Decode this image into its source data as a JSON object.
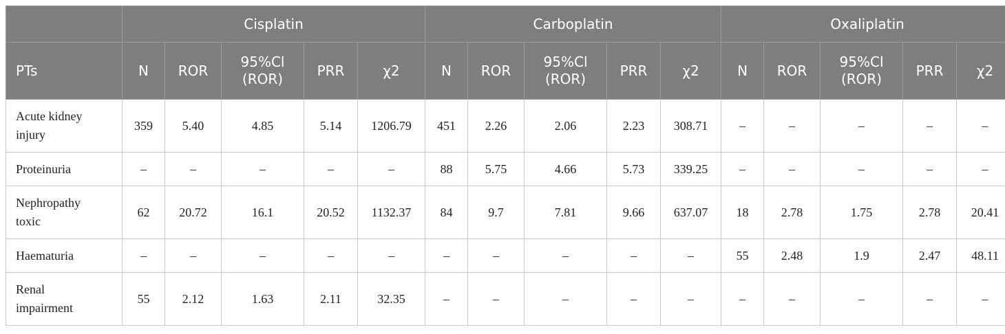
{
  "groups": [
    "Cisplatin",
    "Carboplatin",
    "Oxaliplatin"
  ],
  "columns": {
    "pts": "PTs",
    "n": "N",
    "ror": "ROR",
    "ci_line1": "95%Cl",
    "ci_line2": "(ROR)",
    "prr": "PRR",
    "chi2": "χ2"
  },
  "rows": [
    {
      "pt_line1": "Acute kidney",
      "pt_line2": "injury",
      "cells": [
        "359",
        "5.40",
        "4.85",
        "5.14",
        "1206.79",
        "451",
        "2.26",
        "2.06",
        "2.23",
        "308.71",
        "–",
        "–",
        "–",
        "–",
        "–"
      ]
    },
    {
      "pt_line1": "Proteinuria",
      "pt_line2": "",
      "cells": [
        "–",
        "–",
        "–",
        "–",
        "–",
        "88",
        "5.75",
        "4.66",
        "5.73",
        "339.25",
        "–",
        "–",
        "–",
        "–",
        "–"
      ]
    },
    {
      "pt_line1": "Nephropathy",
      "pt_line2": "toxic",
      "cells": [
        "62",
        "20.72",
        "16.1",
        "20.52",
        "1132.37",
        "84",
        "9.7",
        "7.81",
        "9.66",
        "637.07",
        "18",
        "2.78",
        "1.75",
        "2.78",
        "20.41"
      ]
    },
    {
      "pt_line1": "Haematuria",
      "pt_line2": "",
      "cells": [
        "–",
        "–",
        "–",
        "–",
        "–",
        "–",
        "–",
        "–",
        "–",
        "–",
        "55",
        "2.48",
        "1.9",
        "2.47",
        "48.11"
      ]
    },
    {
      "pt_line1": "Renal",
      "pt_line2": "impairment",
      "cells": [
        "55",
        "2.12",
        "1.63",
        "2.11",
        "32.35",
        "–",
        "–",
        "–",
        "–",
        "–",
        "–",
        "–",
        "–",
        "–",
        "–"
      ]
    }
  ]
}
